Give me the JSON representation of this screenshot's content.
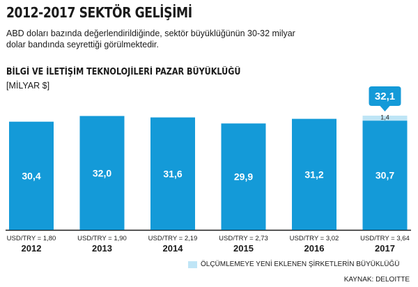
{
  "header": {
    "headline": "2012-2017 SEKTÖR GELİŞİMİ",
    "description": "ABD doları bazında değerlendirildiğinde, sektör büyüklüğünün 30-32 milyar dolar bandında seyrettiği görülmektedir."
  },
  "chart_data": {
    "type": "bar",
    "title": "BİLGİ VE İLETİŞİM TEKNOLOJİLERİ PAZAR BÜYÜKLÜĞÜ",
    "ylabel": "[MİLYAR $]",
    "categories": [
      "2012",
      "2013",
      "2014",
      "2015",
      "2016",
      "2017"
    ],
    "category_sublabels": [
      "USD/TRY = 1,80",
      "USD/TRY = 1,90",
      "USD/TRY = 2,19",
      "USD/TRY = 2,73",
      "USD/TRY = 3,02",
      "USD/TRY = 3,64"
    ],
    "series": [
      {
        "values": [
          30.4,
          32.0,
          31.6,
          29.9,
          31.2,
          30.7
        ],
        "labels": [
          "30,4",
          "32,0",
          "31,6",
          "29,9",
          "31,2",
          "30,7"
        ],
        "color": "#149ad8"
      },
      {
        "name": "ÖLÇÜMLEMEYE YENİ EKLENEN ŞİRKETLERİN BÜYÜKLÜĞÜ",
        "values": [
          0,
          0,
          0,
          0,
          0,
          1.4
        ],
        "labels": [
          "",
          "",
          "",
          "",
          "",
          "1,4"
        ],
        "color": "#bfe5f6"
      }
    ],
    "total_callout": {
      "category": "2017",
      "value": 32.1,
      "label": "32,1",
      "color": "#149ad8"
    },
    "ylim": [
      0,
      32.1
    ],
    "legend_position": "bottom-right",
    "grid": false
  },
  "footer": {
    "legend_label": "ÖLÇÜMLEMEYE YENİ EKLENEN ŞİRKETLERİN BÜYÜKLÜĞÜ",
    "source": "KAYNAK: DELOITTE"
  }
}
